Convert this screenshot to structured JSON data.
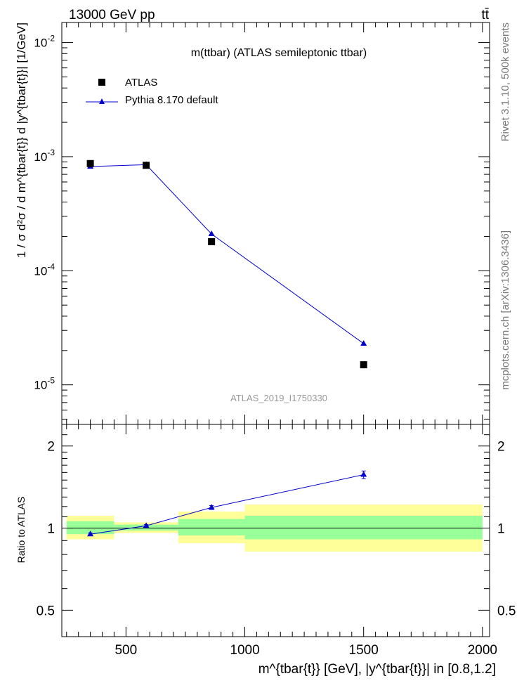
{
  "header": {
    "left": "13000 GeV pp",
    "right": "tt̄"
  },
  "side_labels": {
    "rivet": "Rivet 3.1.10,  500k events",
    "mcplots": "mcplots.cern.ch [arXiv:1306.3436]"
  },
  "colors": {
    "mc": "#0000cc",
    "band_inner": "#99ff99",
    "band_outer": "#ffff99",
    "data": "#000000"
  },
  "chart_data": [
    {
      "type": "scatter",
      "panel": "main",
      "title": "m(ttbar) (ATLAS semileptonic ttbar)",
      "watermark": "ATLAS_2019_I1750330",
      "ylabel": "1 / σ d²σ / d m^{tbar{t}} d |y^{tbar{t}}| [1/GeV]",
      "yscale": "log",
      "ylim": [
        4.5e-06,
        0.015
      ],
      "xlim": [
        230,
        2030
      ],
      "ytick_labels": [
        "10^{-2}",
        "10^{-3}",
        "10^{-4}",
        "10^{-5}"
      ],
      "legend_position": "top-left",
      "series": [
        {
          "name": "ATLAS",
          "marker": "square",
          "x": [
            350,
            585,
            860,
            1500
          ],
          "y": [
            0.00087,
            0.00084,
            0.00018,
            1.5e-05
          ]
        },
        {
          "name": "Pythia 8.170 default",
          "marker": "triangle",
          "line": true,
          "x": [
            350,
            585,
            860,
            1500
          ],
          "y": [
            0.00082,
            0.00085,
            0.00021,
            2.3e-05
          ]
        }
      ]
    },
    {
      "type": "line",
      "panel": "ratio",
      "ylabel": "Ratio to ATLAS",
      "xlabel": "m^{tbar{t}} [GeV], |y^{tbar{t}}| in [0.8,1.2]",
      "yscale": "log",
      "ylim": [
        0.4,
        2.4
      ],
      "xlim": [
        230,
        2030
      ],
      "ytick_labels": [
        "0.5",
        "1",
        "2"
      ],
      "xtick_labels": [
        "500",
        "1000",
        "1500",
        "2000"
      ],
      "bins": [
        {
          "lo": 250,
          "hi": 450,
          "inner": [
            0.95,
            1.06
          ],
          "outer": [
            0.91,
            1.11
          ]
        },
        {
          "lo": 450,
          "hi": 720,
          "inner": [
            0.98,
            1.03
          ],
          "outer": [
            0.96,
            1.05
          ]
        },
        {
          "lo": 720,
          "hi": 1000,
          "inner": [
            0.94,
            1.08
          ],
          "outer": [
            0.88,
            1.15
          ]
        },
        {
          "lo": 1000,
          "hi": 2000,
          "inner": [
            0.91,
            1.11
          ],
          "outer": [
            0.82,
            1.22
          ]
        }
      ],
      "mc_ratio": {
        "x": [
          350,
          585,
          860,
          1500
        ],
        "y": [
          0.95,
          1.02,
          1.19,
          1.57
        ],
        "err": [
          0.01,
          0.01,
          0.02,
          0.05
        ]
      }
    }
  ]
}
